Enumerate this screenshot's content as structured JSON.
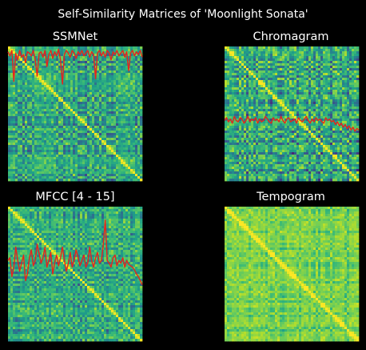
{
  "figure": {
    "title": "Self-Similarity Matrices of 'Moonlight Sonata'",
    "background": "#000000",
    "line_color": "#e8231b"
  },
  "chart_data": [
    {
      "type": "heatmap",
      "title": "SSMNet",
      "colormap": "viridis",
      "overlay_line": true,
      "overlay": [
        0.96,
        0.93,
        0.97,
        0.74,
        0.95,
        0.9,
        0.97,
        0.92,
        0.94,
        0.88,
        0.96,
        0.95,
        0.93,
        0.97,
        0.9,
        0.78,
        0.95,
        0.96,
        0.92,
        0.97,
        0.85,
        0.94,
        0.97,
        0.91,
        0.96,
        0.93,
        0.98,
        0.9,
        0.72,
        0.94,
        0.97,
        0.95,
        0.92,
        0.97,
        0.95,
        0.91,
        0.96,
        0.94,
        0.97,
        0.93,
        0.95,
        0.97,
        0.92,
        0.96,
        0.94,
        0.76,
        0.95,
        0.97,
        0.93,
        0.96,
        0.92,
        0.97,
        0.95,
        0.9,
        0.96,
        0.94,
        0.97,
        0.93,
        0.95,
        0.97,
        0.92,
        0.96,
        0.82,
        0.95,
        0.97,
        0.93,
        0.96,
        0.94,
        0.97,
        0.92
      ]
    },
    {
      "type": "heatmap",
      "title": "Chromagram",
      "colormap": "viridis",
      "overlay_line": true,
      "overlay": [
        0.45,
        0.47,
        0.44,
        0.46,
        0.43,
        0.48,
        0.45,
        0.44,
        0.47,
        0.46,
        0.43,
        0.45,
        0.48,
        0.44,
        0.46,
        0.45,
        0.47,
        0.43,
        0.46,
        0.44,
        0.45,
        0.48,
        0.46,
        0.44,
        0.43,
        0.47,
        0.45,
        0.46,
        0.44,
        0.48,
        0.45,
        0.43,
        0.46,
        0.47,
        0.44,
        0.45,
        0.46,
        0.43,
        0.47,
        0.45,
        0.44,
        0.46,
        0.48,
        0.45,
        0.43,
        0.46,
        0.44,
        0.47,
        0.45,
        0.46,
        0.44,
        0.43,
        0.47,
        0.45,
        0.46,
        0.44,
        0.45,
        0.42,
        0.44,
        0.41,
        0.43,
        0.4,
        0.42,
        0.39,
        0.41,
        0.38,
        0.4,
        0.37,
        0.39,
        0.38
      ]
    },
    {
      "type": "heatmap",
      "title": "MFCC [4 - 15]",
      "colormap": "viridis",
      "overlay_line": true,
      "overlay": [
        0.6,
        0.62,
        0.48,
        0.55,
        0.7,
        0.6,
        0.52,
        0.58,
        0.64,
        0.45,
        0.5,
        0.62,
        0.68,
        0.56,
        0.6,
        0.72,
        0.65,
        0.58,
        0.62,
        0.7,
        0.55,
        0.6,
        0.66,
        0.5,
        0.58,
        0.64,
        0.56,
        0.62,
        0.7,
        0.6,
        0.52,
        0.58,
        0.66,
        0.55,
        0.6,
        0.68,
        0.62,
        0.56,
        0.6,
        0.64,
        0.55,
        0.58,
        0.7,
        0.6,
        0.55,
        0.62,
        0.66,
        0.58,
        0.6,
        0.72,
        0.9,
        0.6,
        0.58,
        0.55,
        0.62,
        0.64,
        0.56,
        0.6,
        0.58,
        0.62,
        0.55,
        0.6,
        0.57,
        0.56,
        0.55,
        0.53,
        0.5,
        0.48,
        0.45,
        0.42
      ]
    },
    {
      "type": "heatmap",
      "title": "Tempogram",
      "colormap": "viridis",
      "overlay_line": false
    }
  ]
}
